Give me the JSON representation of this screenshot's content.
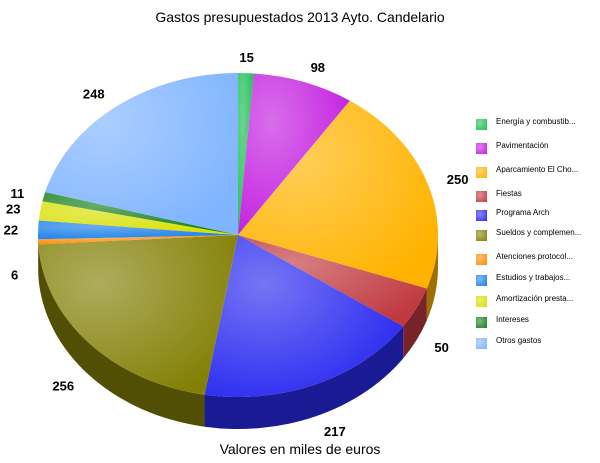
{
  "chart_data": {
    "type": "pie",
    "title": "Gastos presupuestados 2013 Ayto. Candelario",
    "xlabel": "Valores en miles de euros",
    "legend_position": "right",
    "slices": [
      {
        "label": "Energía y combustib...",
        "value": 15,
        "color": "#1fbf55"
      },
      {
        "label": "Pavimentación",
        "value": 98,
        "color": "#c31ee0"
      },
      {
        "label": "Aparcamiento El Cho...",
        "value": 250,
        "color": "#ffb300"
      },
      {
        "label": "Fiestas",
        "value": 50,
        "color": "#c0393f"
      },
      {
        "label": "Programa Arch",
        "value": 217,
        "color": "#2a2af0"
      },
      {
        "label": "Sueldos y complemen...",
        "value": 256,
        "color": "#838005"
      },
      {
        "label": "Atenciones protocol...",
        "value": 6,
        "color": "#ff8a00"
      },
      {
        "label": "Estudios y trabajos...",
        "value": 22,
        "color": "#1c80e8"
      },
      {
        "label": "Amortización presta...",
        "value": 23,
        "color": "#d8e000"
      },
      {
        "label": "Intereses",
        "value": 11,
        "color": "#15801a"
      },
      {
        "label": "Otros gastos",
        "value": 248,
        "color": "#7fb4ff"
      }
    ]
  }
}
